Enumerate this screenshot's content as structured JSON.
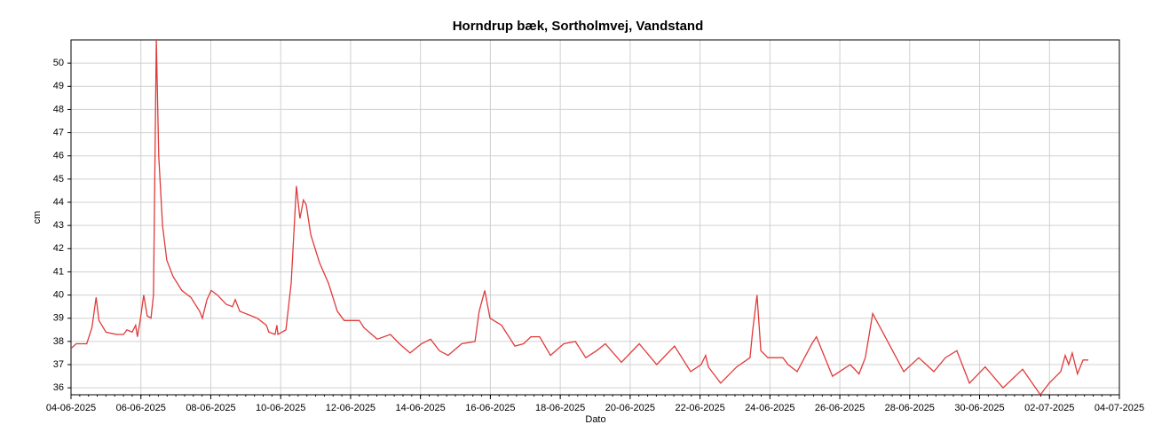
{
  "chart_data": {
    "type": "line",
    "title": "Horndrup bæk, Sortholmvej, Vandstand",
    "xlabel": "Dato",
    "ylabel": "cm",
    "xlim": [
      0,
      30
    ],
    "ylim": [
      35.7,
      51
    ],
    "xticks": [
      {
        "value": 0,
        "label": "04-06-2025"
      },
      {
        "value": 2,
        "label": "06-06-2025"
      },
      {
        "value": 4,
        "label": "08-06-2025"
      },
      {
        "value": 6,
        "label": "10-06-2025"
      },
      {
        "value": 8,
        "label": "12-06-2025"
      },
      {
        "value": 10,
        "label": "14-06-2025"
      },
      {
        "value": 12,
        "label": "16-06-2025"
      },
      {
        "value": 14,
        "label": "18-06-2025"
      },
      {
        "value": 16,
        "label": "20-06-2025"
      },
      {
        "value": 18,
        "label": "22-06-2025"
      },
      {
        "value": 20,
        "label": "24-06-2025"
      },
      {
        "value": 22,
        "label": "26-06-2025"
      },
      {
        "value": 24,
        "label": "28-06-2025"
      },
      {
        "value": 26,
        "label": "30-06-2025"
      },
      {
        "value": 28,
        "label": "02-07-2025"
      },
      {
        "value": 30,
        "label": "04-07-2025"
      }
    ],
    "yticks": [
      36,
      37,
      38,
      39,
      40,
      41,
      42,
      43,
      44,
      45,
      46,
      47,
      48,
      49,
      50
    ],
    "grid": true,
    "series": [
      {
        "color": "#e03a3a",
        "x": [
          0,
          0.15,
          0.45,
          0.6,
          0.72,
          0.8,
          1.0,
          1.3,
          1.5,
          1.6,
          1.75,
          1.85,
          1.9,
          1.98,
          2.08,
          2.18,
          2.29,
          2.36,
          2.44,
          2.51,
          2.62,
          2.74,
          2.92,
          3.17,
          3.43,
          3.68,
          3.76,
          3.89,
          4.01,
          4.19,
          4.44,
          4.62,
          4.7,
          4.83,
          5.33,
          5.59,
          5.66,
          5.84,
          5.89,
          5.92,
          6.15,
          6.3,
          6.45,
          6.55,
          6.65,
          6.73,
          6.86,
          7.11,
          7.37,
          7.62,
          7.82,
          8.25,
          8.38,
          8.76,
          9.14,
          9.4,
          9.7,
          10.03,
          10.29,
          10.54,
          10.79,
          11.18,
          11.56,
          11.68,
          11.84,
          11.99,
          12.32,
          12.7,
          12.95,
          13.16,
          13.41,
          13.72,
          14.1,
          14.43,
          14.73,
          15.04,
          15.29,
          15.75,
          16.26,
          16.76,
          17.27,
          17.73,
          18.03,
          18.16,
          18.24,
          18.59,
          19.05,
          19.43,
          19.51,
          19.63,
          19.74,
          19.94,
          20.37,
          20.52,
          20.78,
          21.2,
          21.33,
          21.79,
          22.3,
          22.55,
          22.73,
          22.94,
          23.37,
          23.83,
          24.26,
          24.69,
          25.02,
          25.35,
          25.71,
          26.16,
          26.67,
          27.23,
          27.74,
          27.99,
          28.32,
          28.45,
          28.55,
          28.65,
          28.8,
          28.96,
          29.11
        ],
        "values": [
          37.7,
          37.9,
          37.9,
          38.6,
          39.9,
          38.9,
          38.4,
          38.3,
          38.3,
          38.5,
          38.4,
          38.7,
          38.2,
          38.9,
          40.0,
          39.1,
          39.0,
          40.0,
          51.0,
          46.0,
          43.0,
          41.5,
          40.8,
          40.2,
          39.9,
          39.3,
          39.0,
          39.8,
          40.2,
          40.0,
          39.6,
          39.5,
          39.8,
          39.3,
          39.0,
          38.7,
          38.4,
          38.3,
          38.7,
          38.3,
          38.5,
          40.5,
          44.7,
          43.3,
          44.1,
          43.9,
          42.6,
          41.4,
          40.5,
          39.3,
          38.9,
          38.9,
          38.6,
          38.1,
          38.3,
          37.9,
          37.5,
          37.9,
          38.1,
          37.6,
          37.4,
          37.9,
          38.0,
          39.3,
          40.2,
          39.0,
          38.7,
          37.8,
          37.9,
          38.2,
          38.2,
          37.4,
          37.9,
          38.0,
          37.3,
          37.6,
          37.9,
          37.1,
          37.9,
          37.0,
          37.8,
          36.7,
          37.0,
          37.4,
          36.9,
          36.2,
          36.9,
          37.3,
          38.5,
          40.0,
          37.6,
          37.3,
          37.3,
          37.0,
          36.7,
          37.9,
          38.2,
          36.5,
          37.0,
          36.6,
          37.3,
          39.2,
          38.0,
          36.7,
          37.3,
          36.7,
          37.3,
          37.6,
          36.2,
          36.9,
          36.0,
          36.8,
          35.7,
          36.2,
          36.7,
          37.4,
          37.0,
          37.5,
          36.6,
          37.2,
          37.2
        ]
      }
    ]
  }
}
